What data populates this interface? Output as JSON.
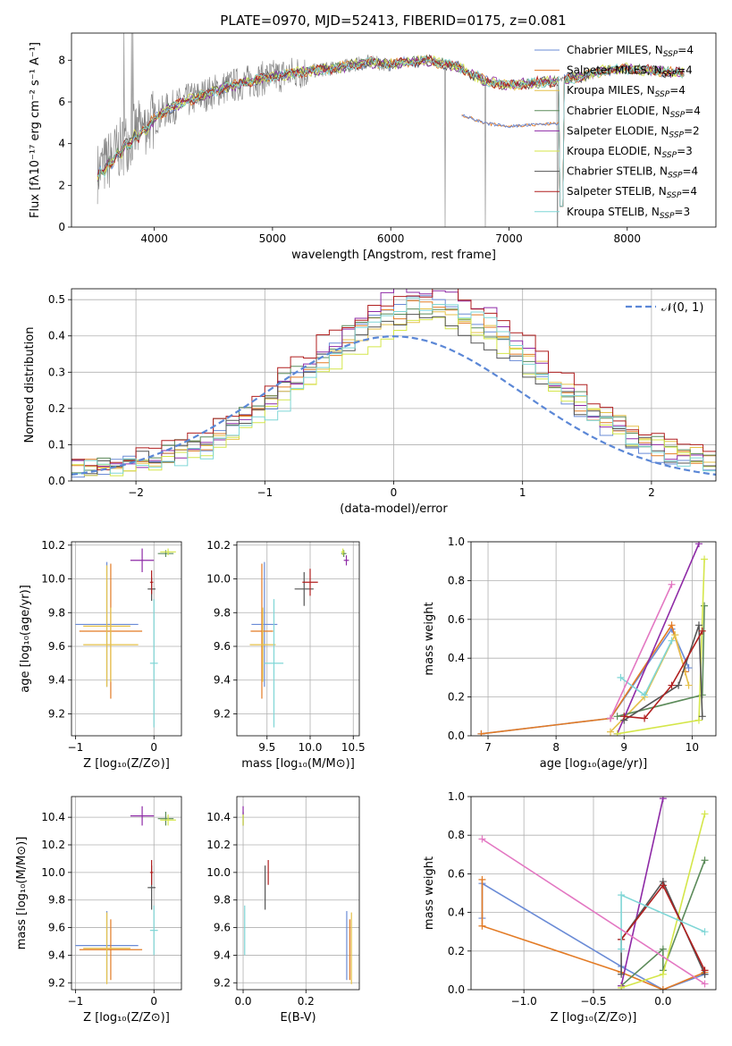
{
  "title": "PLATE=0970, MJD=52413, FIBERID=0175, z=0.081",
  "colors": {
    "Chabrier MILES": "#6a8bd6",
    "Salpeter MILES": "#e37b25",
    "Kroupa MILES": "#e5c14a",
    "Chabrier ELODIE": "#5c8b5a",
    "Salpeter ELODIE": "#8e2aa6",
    "Kroupa ELODIE": "#d4e64a",
    "Chabrier STELIB": "#555555",
    "Salpeter STELIB": "#b01f1f",
    "Kroupa STELIB": "#7fd6d6",
    "data": "#808080",
    "normal": "#5b87d6"
  },
  "chart_data": [
    {
      "id": "spectrum",
      "type": "line",
      "xlabel": "wavelength [Angstrom, rest frame]",
      "ylabel": "Flux [fλ10⁻¹⁷ erg cm⁻² s⁻¹ A⁻¹]",
      "xlim": [
        3300,
        8750
      ],
      "ylim": [
        0,
        9.3
      ],
      "xticks": [
        4000,
        5000,
        6000,
        7000,
        8000
      ],
      "yticks": [
        0,
        2,
        4,
        6,
        8
      ],
      "legend": [
        {
          "model": "Chabrier MILES",
          "label": "Chabrier MILES, N",
          "sub": "SSP",
          "post": "=4"
        },
        {
          "model": "Salpeter MILES",
          "label": "Salpeter MILES, N",
          "sub": "SSP",
          "post": "=4"
        },
        {
          "model": "Kroupa MILES",
          "label": "Kroupa MILES, N",
          "sub": "SSP",
          "post": "=4"
        },
        {
          "model": "Chabrier ELODIE",
          "label": "Chabrier ELODIE, N",
          "sub": "SSP",
          "post": "=4"
        },
        {
          "model": "Salpeter ELODIE",
          "label": "Salpeter ELODIE, N",
          "sub": "SSP",
          "post": "=2"
        },
        {
          "model": "Kroupa ELODIE",
          "label": "Kroupa ELODIE, N",
          "sub": "SSP",
          "post": "=3"
        },
        {
          "model": "Chabrier STELIB",
          "label": "Chabrier STELIB, N",
          "sub": "SSP",
          "post": "=4"
        },
        {
          "model": "Salpeter STELIB",
          "label": "Salpeter STELIB, N",
          "sub": "SSP",
          "post": "=4"
        },
        {
          "model": "Kroupa STELIB",
          "label": "Kroupa STELIB, N",
          "sub": "SSP",
          "post": "=3"
        }
      ],
      "continuum": {
        "x": [
          3520,
          3650,
          3800,
          3950,
          4100,
          4300,
          4600,
          4900,
          5200,
          5500,
          5800,
          6000,
          6300,
          6560,
          6800,
          7000,
          7200,
          7400,
          7600,
          7800,
          8000,
          8200,
          8400
        ],
        "y": [
          2.6,
          3.4,
          4.3,
          5.0,
          5.6,
          6.1,
          6.7,
          7.1,
          7.4,
          7.6,
          7.9,
          7.8,
          8.0,
          7.7,
          7.0,
          6.8,
          6.9,
          7.0,
          7.2,
          7.5,
          7.6,
          7.5,
          7.4
        ]
      },
      "salpeter_low_range": [
        6600,
        7420
      ],
      "salpeter_low_factor": 0.71,
      "data_gaps_x": [
        6460,
        6800,
        7410
      ]
    },
    {
      "id": "residuals",
      "type": "bar",
      "xlabel": "(data-model)/error",
      "ylabel": "Normed distribution",
      "xlim": [
        -2.5,
        2.5
      ],
      "ylim": [
        0,
        0.53
      ],
      "xticks": [
        -2,
        -1,
        0,
        1,
        2
      ],
      "yticks": [
        0.0,
        0.1,
        0.2,
        0.3,
        0.4,
        0.5
      ],
      "bin_width": 0.1,
      "legend_label": "𝒩(0, 1)",
      "bins_approx": "each model series is a step histogram close to a gaussian centered near 0.2 with peak ~0.45",
      "peaks": [
        0.46,
        0.45,
        0.43,
        0.44,
        0.51,
        0.41,
        0.42,
        0.5,
        0.46
      ]
    },
    {
      "id": "age_vs_Z",
      "type": "scatter",
      "xlabel": "Z [log₁₀(Z/Z⊙)]",
      "ylabel": "age  [log₁₀(age/yr)]",
      "xlim": [
        -1.05,
        0.35
      ],
      "ylim": [
        9.07,
        10.22
      ],
      "xticks": [
        -1,
        0
      ],
      "yticks": [
        9.2,
        9.4,
        9.6,
        9.8,
        10.0,
        10.2
      ],
      "points": [
        {
          "model": "Chabrier MILES",
          "x": -0.6,
          "xerr": 0.4,
          "y": 9.73,
          "yerr": 0.37
        },
        {
          "model": "Salpeter MILES",
          "x": -0.55,
          "xerr": 0.4,
          "y": 9.69,
          "yerr": 0.4
        },
        {
          "model": "Kroupa MILES",
          "x": -0.6,
          "xerr": 0.3,
          "y": 9.72,
          "yerr": 0.36
        },
        {
          "model": "Chabrier ELODIE",
          "x": 0.15,
          "xerr": 0.1,
          "y": 10.15,
          "yerr": 0.02
        },
        {
          "model": "Salpeter ELODIE",
          "x": -0.15,
          "xerr": 0.15,
          "y": 10.11,
          "yerr": 0.07
        },
        {
          "model": "Kroupa ELODIE",
          "x": 0.18,
          "xerr": 0.1,
          "y": 10.16,
          "yerr": 0.02
        },
        {
          "model": "Chabrier STELIB",
          "x": -0.03,
          "xerr": 0.05,
          "y": 9.94,
          "yerr": 0.07
        },
        {
          "model": "Salpeter STELIB",
          "x": -0.03,
          "xerr": 0.02,
          "y": 9.98,
          "yerr": 0.07
        },
        {
          "model": "Kroupa STELIB",
          "x": 0.0,
          "xerr": 0.05,
          "y": 9.5,
          "yerr": 0.38
        },
        {
          "model": "Kroupa MILES",
          "x": -0.55,
          "xerr": 0.35,
          "y": 9.61,
          "yerr": 0.22
        }
      ]
    },
    {
      "id": "age_vs_mass",
      "type": "scatter",
      "xlabel": "mass [log₁₀(M/M⊙)]",
      "xlim": [
        9.15,
        10.57
      ],
      "ylim": [
        9.07,
        10.22
      ],
      "xticks": [
        9.5,
        10.0,
        10.5
      ],
      "xticklabels": [
        "9.5",
        "10.0",
        "10.5"
      ],
      "yticks": [
        9.2,
        9.4,
        9.6,
        9.8,
        10.0,
        10.2
      ],
      "points": [
        {
          "model": "Chabrier MILES",
          "x": 9.47,
          "xerr": 0.15,
          "y": 9.73,
          "yerr": 0.37
        },
        {
          "model": "Salpeter MILES",
          "x": 9.44,
          "xerr": 0.13,
          "y": 9.69,
          "yerr": 0.4
        },
        {
          "model": "Kroupa MILES",
          "x": 9.45,
          "xerr": 0.15,
          "y": 9.61,
          "yerr": 0.22
        },
        {
          "model": "Chabrier ELODIE",
          "x": 10.39,
          "xerr": 0.03,
          "y": 10.15,
          "yerr": 0.02
        },
        {
          "model": "Salpeter ELODIE",
          "x": 10.42,
          "xerr": 0.03,
          "y": 10.11,
          "yerr": 0.03
        },
        {
          "model": "Kroupa ELODIE",
          "x": 10.38,
          "xerr": 0.02,
          "y": 10.16,
          "yerr": 0.02
        },
        {
          "model": "Chabrier STELIB",
          "x": 9.93,
          "xerr": 0.11,
          "y": 9.94,
          "yerr": 0.1
        },
        {
          "model": "Salpeter STELIB",
          "x": 10.0,
          "xerr": 0.09,
          "y": 9.98,
          "yerr": 0.08
        },
        {
          "model": "Kroupa STELIB",
          "x": 9.58,
          "xerr": 0.11,
          "y": 9.5,
          "yerr": 0.38
        }
      ]
    },
    {
      "id": "weight_vs_age",
      "type": "line",
      "xlabel": "age  [log₁₀(age/yr)]",
      "ylabel": "mass weight",
      "xlim": [
        6.75,
        10.35
      ],
      "ylim": [
        0,
        1.0
      ],
      "xticks": [
        7,
        8,
        9,
        10
      ],
      "yticks": [
        0.0,
        0.2,
        0.4,
        0.6,
        0.8,
        1.0
      ],
      "series": [
        {
          "model": "Chabrier MILES",
          "x": [
            6.9,
            8.8,
            9.7,
            9.95
          ],
          "y": [
            0.01,
            0.09,
            0.55,
            0.35
          ]
        },
        {
          "model": "Salpeter MILES",
          "x": [
            6.9,
            8.8,
            9.7,
            9.9
          ],
          "y": [
            0.01,
            0.09,
            0.57,
            0.33
          ]
        },
        {
          "model": "Kroupa MILES",
          "x": [
            8.8,
            9.3,
            9.75,
            9.95
          ],
          "y": [
            0.02,
            0.2,
            0.52,
            0.26
          ]
        },
        {
          "model": "Chabrier ELODIE",
          "x": [
            8.9,
            10.15,
            10.18
          ],
          "y": [
            0.1,
            0.21,
            0.67
          ]
        },
        {
          "model": "Salpeter ELODIE",
          "x": [
            8.9,
            10.1
          ],
          "y": [
            0.01,
            0.99
          ]
        },
        {
          "model": "Kroupa ELODIE",
          "x": [
            8.9,
            10.1,
            10.18
          ],
          "y": [
            0.01,
            0.08,
            0.91
          ]
        },
        {
          "model": "Chabrier STELIB",
          "x": [
            9.0,
            9.8,
            10.1,
            10.15
          ],
          "y": [
            0.08,
            0.26,
            0.57,
            0.1
          ]
        },
        {
          "model": "Salpeter STELIB",
          "x": [
            9.0,
            9.3,
            9.7,
            10.15
          ],
          "y": [
            0.1,
            0.09,
            0.26,
            0.54
          ]
        },
        {
          "model": "Kroupa STELIB",
          "x": [
            8.95,
            9.3,
            9.7
          ],
          "y": [
            0.3,
            0.21,
            0.49
          ]
        },
        {
          "model": "Salpeter ELODIE",
          "x": [
            8.8,
            9.7
          ],
          "y": [
            0.09,
            0.78
          ],
          "color_override": "#e377c2"
        }
      ]
    },
    {
      "id": "mass_vs_Z",
      "type": "scatter",
      "xlabel": "Z [log₁₀(Z/Z⊙)]",
      "ylabel": "mass [log₁₀(M/M⊙)]",
      "xlim": [
        -1.05,
        0.35
      ],
      "ylim": [
        9.15,
        10.55
      ],
      "xticks": [
        -1,
        0
      ],
      "yticks": [
        9.2,
        9.4,
        9.6,
        9.8,
        10.0,
        10.2,
        10.4
      ],
      "points": [
        {
          "model": "Chabrier MILES",
          "x": -0.6,
          "xerr": 0.4,
          "y": 9.47,
          "yerr": 0.25
        },
        {
          "model": "Salpeter MILES",
          "x": -0.55,
          "xerr": 0.4,
          "y": 9.44,
          "yerr": 0.22
        },
        {
          "model": "Kroupa MILES",
          "x": -0.6,
          "xerr": 0.3,
          "y": 9.45,
          "yerr": 0.26
        },
        {
          "model": "Chabrier ELODIE",
          "x": 0.15,
          "xerr": 0.1,
          "y": 10.39,
          "yerr": 0.05
        },
        {
          "model": "Salpeter ELODIE",
          "x": -0.15,
          "xerr": 0.15,
          "y": 10.41,
          "yerr": 0.07
        },
        {
          "model": "Kroupa ELODIE",
          "x": 0.18,
          "xerr": 0.1,
          "y": 10.38,
          "yerr": 0.04
        },
        {
          "model": "Chabrier STELIB",
          "x": -0.03,
          "xerr": 0.05,
          "y": 9.89,
          "yerr": 0.16
        },
        {
          "model": "Salpeter STELIB",
          "x": -0.03,
          "xerr": 0.02,
          "y": 10.0,
          "yerr": 0.09
        },
        {
          "model": "Kroupa STELIB",
          "x": 0.0,
          "xerr": 0.05,
          "y": 9.58,
          "yerr": 0.18
        }
      ]
    },
    {
      "id": "mass_vs_ebv",
      "type": "scatter",
      "xlabel": "E(B-V)",
      "xlim": [
        -0.02,
        0.37
      ],
      "ylim": [
        9.15,
        10.55
      ],
      "xticks": [
        0.0,
        0.2
      ],
      "xticklabels": [
        "0.0",
        "0.2"
      ],
      "yticks": [
        9.2,
        9.4,
        9.6,
        9.8,
        10.0,
        10.2,
        10.4
      ],
      "points": [
        {
          "model": "Chabrier MILES",
          "x": 0.33,
          "y": 9.47,
          "yerr": 0.25
        },
        {
          "model": "Salpeter MILES",
          "x": 0.34,
          "y": 9.44,
          "yerr": 0.22
        },
        {
          "model": "Kroupa MILES",
          "x": 0.345,
          "y": 9.45,
          "yerr": 0.26
        },
        {
          "model": "Chabrier ELODIE",
          "x": 0.0,
          "y": 10.39,
          "yerr": 0.05
        },
        {
          "model": "Salpeter ELODIE",
          "x": 0.0,
          "y": 10.41,
          "yerr": 0.07
        },
        {
          "model": "Kroupa ELODIE",
          "x": 0.0,
          "y": 10.38,
          "yerr": 0.04
        },
        {
          "model": "Chabrier STELIB",
          "x": 0.07,
          "y": 9.89,
          "yerr": 0.16
        },
        {
          "model": "Salpeter STELIB",
          "x": 0.08,
          "y": 10.0,
          "yerr": 0.09
        },
        {
          "model": "Kroupa STELIB",
          "x": 0.005,
          "y": 9.58,
          "yerr": 0.18
        }
      ]
    },
    {
      "id": "weight_vs_Z",
      "type": "line",
      "xlabel": "Z [log₁₀(Z/Z⊙)]",
      "ylabel": "mass weight",
      "xlim": [
        -1.38,
        0.38
      ],
      "ylim": [
        0,
        1.0
      ],
      "xticks": [
        -1.0,
        -0.5,
        0.0
      ],
      "xticklabels": [
        "−1.0",
        "−0.5",
        "0.0"
      ],
      "yticks": [
        0.0,
        0.2,
        0.4,
        0.6,
        0.8,
        1.0
      ],
      "series": [
        {
          "model": "Chabrier MILES",
          "x": [
            -1.3,
            -1.3,
            -0.3,
            0.0,
            0.3
          ],
          "y": [
            0.37,
            0.55,
            0.12,
            0.0,
            0.08
          ]
        },
        {
          "model": "Salpeter MILES",
          "x": [
            -1.3,
            -1.3,
            -0.3,
            0.0,
            0.3
          ],
          "y": [
            0.57,
            0.33,
            0.09,
            0.0,
            0.09
          ]
        },
        {
          "model": "Chabrier ELODIE",
          "x": [
            -0.3,
            0.0,
            0.0,
            0.3
          ],
          "y": [
            0.02,
            0.21,
            0.1,
            0.67
          ]
        },
        {
          "model": "Salpeter ELODIE",
          "x": [
            -0.3,
            0.0
          ],
          "y": [
            0.02,
            0.99
          ]
        },
        {
          "model": "Kroupa ELODIE",
          "x": [
            -0.3,
            0.0,
            0.3
          ],
          "y": [
            0.01,
            0.08,
            0.91
          ]
        },
        {
          "model": "Chabrier STELIB",
          "x": [
            -0.3,
            -0.3,
            0.0,
            0.3
          ],
          "y": [
            0.08,
            0.26,
            0.56,
            0.08
          ]
        },
        {
          "model": "Salpeter STELIB",
          "x": [
            -0.3,
            0.0,
            0.3
          ],
          "y": [
            0.26,
            0.54,
            0.1
          ]
        },
        {
          "model": "Kroupa STELIB",
          "x": [
            -0.3,
            -0.3,
            0.3
          ],
          "y": [
            0.21,
            0.49,
            0.3
          ]
        },
        {
          "model": "Salpeter ELODIE",
          "x": [
            -1.3,
            0.3
          ],
          "y": [
            0.78,
            0.03
          ],
          "color_override": "#e377c2"
        }
      ]
    }
  ]
}
